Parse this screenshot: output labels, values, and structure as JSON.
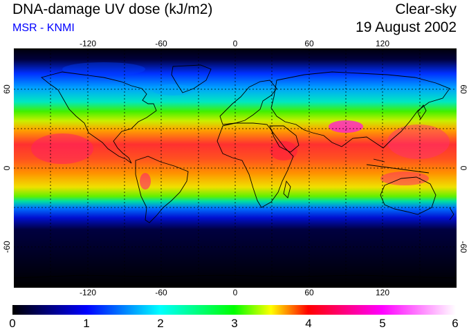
{
  "header": {
    "title": "DNA-damage UV dose (kJ/m2)",
    "subtitle": "MSR - KNMI",
    "subtitle_color": "#0000ff",
    "condition": "Clear-sky",
    "date": "19 August 2002"
  },
  "map": {
    "projection": "equirectangular",
    "lon_range": [
      -180,
      180
    ],
    "lat_range": [
      -90,
      90
    ],
    "gridlines": "dotted",
    "grid_spacing_deg": 30,
    "top_lon_labels": [
      "-120",
      "-60",
      "0",
      "60",
      "120"
    ],
    "bottom_lon_labels": [
      "-120",
      "-60",
      "0",
      "60",
      "120"
    ],
    "left_lat_labels": [
      "60",
      "0",
      "-60"
    ],
    "right_lat_labels": [
      "60",
      "0",
      "-60"
    ]
  },
  "colorbar": {
    "ticks": [
      "0",
      "1",
      "2",
      "3",
      "4",
      "5",
      "6"
    ],
    "colors": [
      "#000000",
      "#0000ff",
      "#00ffff",
      "#00ff00",
      "#ffff00",
      "#ff0000",
      "#ff00ff",
      "#ffffff"
    ]
  }
}
